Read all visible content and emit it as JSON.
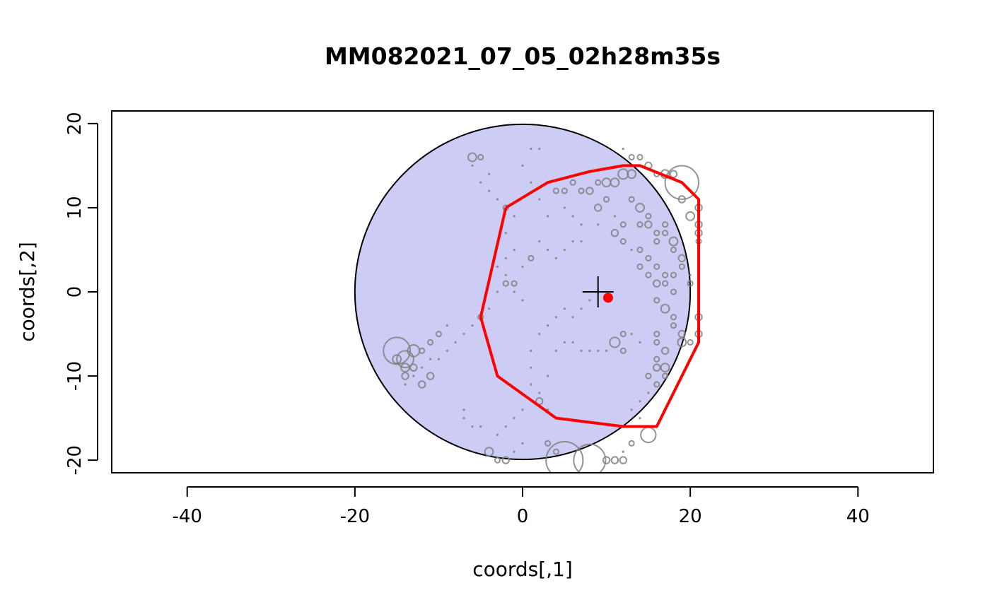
{
  "chart_data": {
    "type": "scatter",
    "title": "MM082021_07_05_02h28m35s",
    "xlabel": "coords[,1]",
    "ylabel": "coords[,2]",
    "xlim": [
      -49,
      49
    ],
    "ylim": [
      -21.5,
      21.5
    ],
    "x_ticks": [
      -40,
      -20,
      0,
      20,
      40
    ],
    "y_ticks": [
      -20,
      -10,
      0,
      10,
      20
    ],
    "x_tick_labels": [
      "-40",
      "-20",
      "0",
      "20",
      "40"
    ],
    "y_tick_labels": [
      "-20",
      "-10",
      "0",
      "10",
      "20"
    ],
    "grid": false,
    "colors": {
      "circle_fill": "#CCCCF4",
      "hull": "#FF0000",
      "points": "#808080",
      "centroid": "#FF0000",
      "center_cross": "#000000"
    },
    "reference_circle": {
      "center": [
        0,
        0
      ],
      "radius": 20
    },
    "center_cross": {
      "x": 9,
      "y": 0
    },
    "centroid": {
      "x": 10.2,
      "y": -0.7
    },
    "hull": [
      [
        -2,
        10
      ],
      [
        3,
        13
      ],
      [
        8,
        14.3
      ],
      [
        12,
        15
      ],
      [
        14,
        15
      ],
      [
        19,
        13
      ],
      [
        21,
        11
      ],
      [
        21,
        -6
      ],
      [
        16,
        -16
      ],
      [
        12,
        -16
      ],
      [
        4,
        -15
      ],
      [
        -3,
        -10
      ],
      [
        -5,
        -3
      ],
      [
        -2,
        10
      ]
    ],
    "points": [
      [
        -15,
        -7,
        1.6
      ],
      [
        -14,
        -8,
        1.0
      ],
      [
        -13,
        -7,
        0.7
      ],
      [
        -14,
        -9,
        0.5
      ],
      [
        -15,
        -8,
        0.5
      ],
      [
        -13,
        -9,
        0.4
      ],
      [
        -14,
        -10,
        0.4
      ],
      [
        -12,
        -11,
        0.4
      ],
      [
        -11,
        -10,
        0.4
      ],
      [
        -10,
        -8,
        0.2
      ],
      [
        -9,
        -7,
        0.2
      ],
      [
        -8,
        -6,
        0.2
      ],
      [
        -7,
        -5,
        0.2
      ],
      [
        -6,
        -4,
        0.2
      ],
      [
        -5,
        -3,
        0.3
      ],
      [
        -4,
        -2,
        0.2
      ],
      [
        -3,
        0,
        0.2
      ],
      [
        -2,
        1,
        0.3
      ],
      [
        -1,
        1,
        0.3
      ],
      [
        0,
        3,
        0.2
      ],
      [
        -6,
        16,
        0.5
      ],
      [
        -5,
        16,
        0.3
      ],
      [
        -6,
        15,
        0.2
      ],
      [
        -4,
        14,
        0.2
      ],
      [
        -5,
        13,
        0.2
      ],
      [
        -4,
        12,
        0.2
      ],
      [
        -3,
        11,
        0.2
      ],
      [
        -2,
        10,
        0.3
      ],
      [
        -1,
        9,
        0.2
      ],
      [
        -2,
        7,
        0.2
      ],
      [
        -1,
        5,
        0.2
      ],
      [
        -2,
        4,
        0.2
      ],
      [
        -3,
        3,
        0.2
      ],
      [
        -2,
        2,
        0.2
      ],
      [
        1,
        17,
        0.2
      ],
      [
        2,
        17,
        0.2
      ],
      [
        0,
        15,
        0.2
      ],
      [
        1,
        13,
        0.2
      ],
      [
        2,
        11,
        0.2
      ],
      [
        3,
        9,
        0.2
      ],
      [
        4,
        12,
        0.3
      ],
      [
        5,
        12,
        0.3
      ],
      [
        6,
        13,
        0.3
      ],
      [
        7,
        12,
        0.3
      ],
      [
        8,
        12,
        0.4
      ],
      [
        9,
        13,
        0.3
      ],
      [
        10,
        13,
        0.5
      ],
      [
        11,
        13,
        0.5
      ],
      [
        12,
        14,
        0.6
      ],
      [
        13,
        14,
        0.5
      ],
      [
        12,
        17,
        0.2
      ],
      [
        13,
        16,
        0.3
      ],
      [
        14,
        16,
        0.3
      ],
      [
        15,
        15,
        0.4
      ],
      [
        16,
        14,
        0.3
      ],
      [
        17,
        14,
        0.5
      ],
      [
        18,
        14,
        0.4
      ],
      [
        19,
        13,
        2.0
      ],
      [
        19,
        11,
        0.4
      ],
      [
        20,
        9,
        0.5
      ],
      [
        21,
        10,
        0.4
      ],
      [
        21,
        8,
        0.4
      ],
      [
        21,
        7,
        0.4
      ],
      [
        21,
        6,
        0.3
      ],
      [
        21,
        4,
        0.2
      ],
      [
        9,
        10,
        0.4
      ],
      [
        9,
        8,
        0.2
      ],
      [
        10,
        11,
        0.3
      ],
      [
        11,
        9,
        0.2
      ],
      [
        11,
        7,
        0.4
      ],
      [
        12,
        6,
        0.3
      ],
      [
        12,
        8,
        0.3
      ],
      [
        13,
        5,
        0.2
      ],
      [
        13,
        11,
        0.3
      ],
      [
        14,
        10,
        0.5
      ],
      [
        14,
        8,
        0.3
      ],
      [
        15,
        9,
        0.3
      ],
      [
        15,
        8,
        0.4
      ],
      [
        16,
        7,
        0.3
      ],
      [
        16,
        6,
        0.3
      ],
      [
        17,
        8,
        0.3
      ],
      [
        17,
        7,
        0.3
      ],
      [
        18,
        6,
        0.5
      ],
      [
        18,
        5,
        0.3
      ],
      [
        19,
        4,
        0.4
      ],
      [
        19,
        3,
        0.3
      ],
      [
        20,
        2,
        0.2
      ],
      [
        20,
        1,
        0.3
      ],
      [
        14,
        5,
        0.3
      ],
      [
        14,
        3,
        0.3
      ],
      [
        15,
        4,
        0.3
      ],
      [
        15,
        2,
        0.3
      ],
      [
        16,
        1,
        0.4
      ],
      [
        16,
        3,
        0.3
      ],
      [
        17,
        1,
        0.3
      ],
      [
        17,
        2,
        0.3
      ],
      [
        18,
        2,
        0.3
      ],
      [
        18,
        0,
        0.3
      ],
      [
        16,
        -1,
        0.3
      ],
      [
        17,
        -2,
        0.5
      ],
      [
        18,
        -3,
        0.3
      ],
      [
        18,
        -4,
        0.3
      ],
      [
        19,
        -5,
        0.4
      ],
      [
        19,
        -6,
        0.5
      ],
      [
        20,
        -6,
        0.3
      ],
      [
        21,
        -3,
        0.4
      ],
      [
        21,
        -5,
        0.4
      ],
      [
        16,
        -5,
        0.3
      ],
      [
        16,
        -6,
        0.3
      ],
      [
        17,
        -7,
        0.4
      ],
      [
        16,
        -8,
        0.3
      ],
      [
        17,
        -9,
        0.5
      ],
      [
        16,
        -9,
        0.4
      ],
      [
        15,
        -10,
        0.3
      ],
      [
        16,
        -11,
        0.3
      ],
      [
        17,
        -10,
        0.3
      ],
      [
        15,
        -12,
        0.2
      ],
      [
        14,
        -13,
        0.2
      ],
      [
        13,
        -14,
        0.2
      ],
      [
        14,
        -15,
        0.2
      ],
      [
        15,
        -17,
        0.9
      ],
      [
        13,
        -18,
        0.3
      ],
      [
        12,
        -19,
        0.2
      ],
      [
        11,
        -20,
        0.4
      ],
      [
        12,
        -20,
        0.4
      ],
      [
        10,
        -20,
        0.4
      ],
      [
        8,
        -20,
        1.9
      ],
      [
        5,
        -20,
        2.2
      ],
      [
        4,
        -19,
        0.3
      ],
      [
        3,
        -18,
        0.3
      ],
      [
        -4,
        -19,
        0.5
      ],
      [
        -3,
        -20,
        0.3
      ],
      [
        -2,
        -20,
        0.4
      ],
      [
        -1,
        -19,
        0.2
      ],
      [
        0,
        -18,
        0.2
      ],
      [
        -3,
        -17,
        0.2
      ],
      [
        -2,
        -16,
        0.2
      ],
      [
        -1,
        -15,
        0.2
      ],
      [
        0,
        -14,
        0.2
      ],
      [
        -5,
        -16,
        0.2
      ],
      [
        -6,
        -16,
        0.2
      ],
      [
        -7,
        -15,
        0.2
      ],
      [
        -7,
        -14,
        0.2
      ],
      [
        1,
        -11,
        0.2
      ],
      [
        2,
        -13,
        0.4
      ],
      [
        2,
        -12,
        0.2
      ],
      [
        3,
        -14,
        0.2
      ],
      [
        3,
        -10,
        0.2
      ],
      [
        1,
        -9,
        0.2
      ],
      [
        1,
        -7,
        0.2
      ],
      [
        4,
        -7,
        0.2
      ],
      [
        5,
        -6,
        0.2
      ],
      [
        6,
        -6,
        0.2
      ],
      [
        7,
        -7,
        0.2
      ],
      [
        8,
        -7,
        0.2
      ],
      [
        9,
        -7,
        0.2
      ],
      [
        10,
        -7,
        0.2
      ],
      [
        11,
        -6,
        0.6
      ],
      [
        12,
        -7,
        0.3
      ],
      [
        12,
        -5,
        0.3
      ],
      [
        13,
        -5,
        0.2
      ],
      [
        14,
        -6,
        0.2
      ],
      [
        2,
        -5,
        0.2
      ],
      [
        3,
        -4,
        0.2
      ],
      [
        4,
        -3,
        0.2
      ],
      [
        5,
        -2,
        0.2
      ],
      [
        6,
        -3,
        0.2
      ],
      [
        7,
        -2,
        0.2
      ],
      [
        8,
        -1,
        0.2
      ],
      [
        7,
        6,
        0.2
      ],
      [
        6,
        6,
        0.2
      ],
      [
        5,
        5,
        0.2
      ],
      [
        4,
        4,
        0.2
      ],
      [
        3,
        5,
        0.2
      ],
      [
        2,
        6,
        0.2
      ],
      [
        5,
        10,
        0.2
      ],
      [
        6,
        9,
        0.2
      ],
      [
        7,
        8,
        0.2
      ],
      [
        1,
        4,
        0.3
      ],
      [
        -1,
        0,
        0.2
      ],
      [
        0,
        -1,
        0.2
      ],
      [
        -9,
        -4,
        0.2
      ],
      [
        -10,
        -5,
        0.3
      ],
      [
        -11,
        -6,
        0.3
      ],
      [
        -12,
        -7,
        0.3
      ],
      [
        -11,
        -8,
        0.2
      ],
      [
        -12,
        -9,
        0.2
      ],
      [
        -13,
        -10,
        0.2
      ],
      [
        -14,
        -11,
        0.2
      ]
    ]
  }
}
